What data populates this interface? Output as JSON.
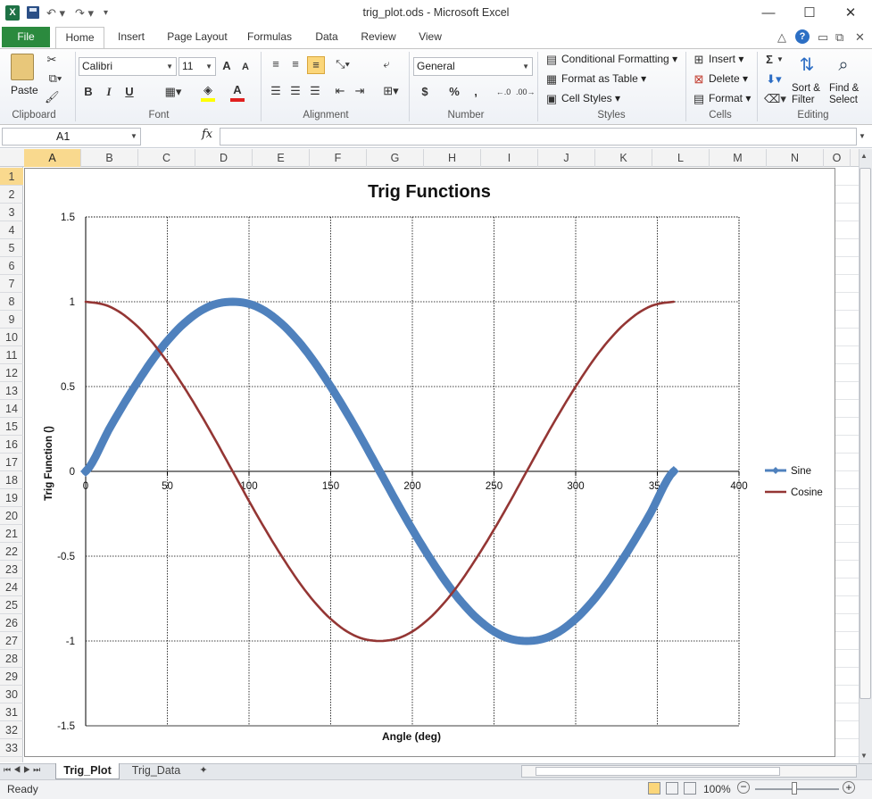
{
  "window": {
    "title": "trig_plot.ods  -  Microsoft Excel",
    "minimize": "—",
    "maximize": "☐",
    "close": "✕"
  },
  "ribbon_tabs": {
    "file": "File",
    "home": "Home",
    "insert": "Insert",
    "page_layout": "Page Layout",
    "formulas": "Formulas",
    "data": "Data",
    "review": "Review",
    "view": "View"
  },
  "ribbon": {
    "clipboard": {
      "label": "Clipboard",
      "paste": "Paste"
    },
    "font": {
      "label": "Font",
      "name": "Calibri",
      "size": "11",
      "bold": "B",
      "italic": "I",
      "underline": "U"
    },
    "alignment": {
      "label": "Alignment"
    },
    "number": {
      "label": "Number",
      "format": "General",
      "currency": "$",
      "percent": "%",
      "comma": ","
    },
    "styles": {
      "label": "Styles",
      "conditional_formatting": "Conditional Formatting",
      "format_as_table": "Format as Table",
      "cell_styles": "Cell Styles"
    },
    "cells": {
      "label": "Cells",
      "insert": "Insert",
      "delete": "Delete",
      "format": "Format"
    },
    "editing": {
      "label": "Editing",
      "sigma": "Σ",
      "sort_filter_1": "Sort &",
      "sort_filter_2": "Filter",
      "find_select_1": "Find &",
      "find_select_2": "Select"
    }
  },
  "formula_bar": {
    "name_box": "A1",
    "fx": "fx",
    "formula": ""
  },
  "grid": {
    "columns": [
      "A",
      "B",
      "C",
      "D",
      "E",
      "F",
      "G",
      "H",
      "I",
      "J",
      "K",
      "L",
      "M",
      "N",
      "O"
    ],
    "rows": [
      "1",
      "2",
      "3",
      "4",
      "5",
      "6",
      "7",
      "8",
      "9",
      "10",
      "11",
      "12",
      "13",
      "14",
      "15",
      "16",
      "17",
      "18",
      "19",
      "20",
      "21",
      "22",
      "23",
      "24",
      "25",
      "26",
      "27",
      "28",
      "29",
      "30",
      "31",
      "32",
      "33"
    ],
    "selected_column": "A",
    "selected_row": "1"
  },
  "chart_data": {
    "type": "line",
    "title": "Trig Functions",
    "xlabel": "Angle (deg)",
    "ylabel": "Trig Function ()",
    "xlim": [
      0,
      400
    ],
    "ylim": [
      -1.5,
      1.5
    ],
    "x_ticks": [
      "0",
      "50",
      "100",
      "150",
      "200",
      "250",
      "300",
      "350",
      "400"
    ],
    "y_ticks": [
      "1.5",
      "1",
      "0.5",
      "0",
      "-0.5",
      "-1",
      "-1.5"
    ],
    "grid": true,
    "legend_position": "right",
    "x": [
      0,
      15,
      30,
      45,
      60,
      75,
      90,
      105,
      120,
      135,
      150,
      165,
      180,
      195,
      210,
      225,
      240,
      255,
      270,
      285,
      300,
      315,
      330,
      345,
      360
    ],
    "series": [
      {
        "name": "Sine",
        "color": "#4f81bd",
        "values": [
          0,
          0.26,
          0.5,
          0.71,
          0.87,
          0.97,
          1,
          0.97,
          0.87,
          0.71,
          0.5,
          0.26,
          0,
          -0.26,
          -0.5,
          -0.71,
          -0.87,
          -0.97,
          -1,
          -0.97,
          -0.87,
          -0.71,
          -0.5,
          -0.26,
          0
        ]
      },
      {
        "name": "Cosine",
        "color": "#943634",
        "values": [
          1,
          0.97,
          0.87,
          0.71,
          0.5,
          0.26,
          0,
          -0.26,
          -0.5,
          -0.71,
          -0.87,
          -0.97,
          -1,
          -0.97,
          -0.87,
          -0.71,
          -0.5,
          -0.26,
          0,
          0.26,
          0.5,
          0.71,
          0.87,
          0.97,
          1
        ]
      }
    ]
  },
  "sheets": {
    "trig_plot": "Trig_Plot",
    "trig_data": "Trig_Data"
  },
  "status": {
    "ready": "Ready",
    "zoom": "100%"
  }
}
